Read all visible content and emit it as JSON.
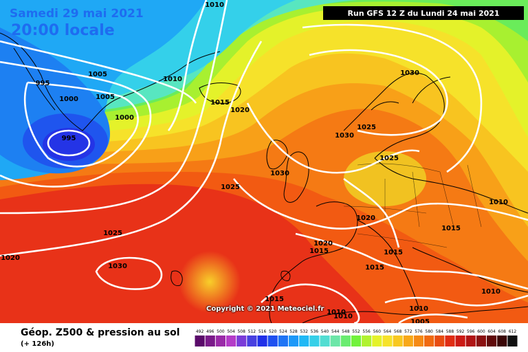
{
  "header": {
    "date": "Samedi 29 mai 2021",
    "time": "20:00 locale",
    "run": "Run GFS 12 Z du Lundi 24 mai 2021"
  },
  "copyright": "Copyright © 2021 Meteociel.fr",
  "footer": {
    "title": "Géop. Z500 & pression au sol",
    "subtitle": "(+ 126h)"
  },
  "legend": {
    "values": [
      "492",
      "496",
      "500",
      "504",
      "508",
      "512",
      "516",
      "520",
      "524",
      "528",
      "532",
      "536",
      "540",
      "544",
      "548",
      "552",
      "556",
      "560",
      "564",
      "568",
      "572",
      "576",
      "580",
      "584",
      "588",
      "592",
      "596",
      "600",
      "604",
      "608",
      "612"
    ],
    "colors": [
      "#5a0a6a",
      "#7a1a8a",
      "#9a2aa8",
      "#b43cc8",
      "#7a3cd8",
      "#4840e0",
      "#2030e8",
      "#1f50f0",
      "#1e74f5",
      "#1d98f8",
      "#20b8f5",
      "#36cfe8",
      "#52ddd2",
      "#6ce6a8",
      "#6aec70",
      "#72f23c",
      "#b0f230",
      "#e4f22a",
      "#f6e22a",
      "#f8c820",
      "#f8a818",
      "#f58a14",
      "#f06a10",
      "#e84c10",
      "#e02c12",
      "#cc1a14",
      "#b01414",
      "#8a1010",
      "#600a0a",
      "#3a0606",
      "#101010"
    ]
  },
  "isobars": [
    {
      "label": "1005",
      "lx": "142",
      "ly": "103"
    },
    {
      "label": "1010",
      "lx": "251",
      "ly": "110"
    },
    {
      "label": "995",
      "lx": "62",
      "ly": "116"
    },
    {
      "label": "1000",
      "lx": "100",
      "ly": "139"
    },
    {
      "label": "1005",
      "lx": "153",
      "ly": "136"
    },
    {
      "label": "1000",
      "lx": "181",
      "ly": "166"
    },
    {
      "label": "995",
      "lx": "100",
      "ly": "196"
    },
    {
      "label": "1015",
      "lx": "320",
      "ly": "144"
    },
    {
      "label": "1020",
      "lx": "349",
      "ly": "155"
    },
    {
      "label": "1030",
      "lx": "596",
      "ly": "101"
    },
    {
      "label": "1025",
      "lx": "533",
      "ly": "180"
    },
    {
      "label": "1030",
      "lx": "501",
      "ly": "192"
    },
    {
      "label": "1025",
      "lx": "566",
      "ly": "225"
    },
    {
      "label": "1030",
      "lx": "407",
      "ly": "247"
    },
    {
      "label": "1025",
      "lx": "335",
      "ly": "267"
    },
    {
      "label": "1010",
      "lx": "725",
      "ly": "289"
    },
    {
      "label": "1020",
      "lx": "532",
      "ly": "312"
    },
    {
      "label": "1015",
      "lx": "656",
      "ly": "327"
    },
    {
      "label": "1025",
      "lx": "164",
      "ly": "334"
    },
    {
      "label": "1020",
      "lx": "470",
      "ly": "349"
    },
    {
      "label": "1015",
      "lx": "464",
      "ly": "360"
    },
    {
      "label": "1015",
      "lx": "572",
      "ly": "362"
    },
    {
      "label": "1020",
      "lx": "15",
      "ly": "370"
    },
    {
      "label": "1030",
      "lx": "171",
      "ly": "382"
    },
    {
      "label": "1015",
      "lx": "545",
      "ly": "384"
    },
    {
      "label": "1010",
      "lx": "714",
      "ly": "419"
    },
    {
      "label": "1015",
      "lx": "399",
      "ly": "430"
    },
    {
      "label": "1010",
      "lx": "489",
      "ly": "449"
    },
    {
      "label": "1010",
      "lx": "499",
      "ly": "455"
    },
    {
      "label": "1010",
      "lx": "609",
      "ly": "444"
    },
    {
      "label": "1005",
      "lx": "611",
      "ly": "463"
    },
    {
      "label": "1010",
      "lx": "312",
      "ly": "2"
    }
  ]
}
